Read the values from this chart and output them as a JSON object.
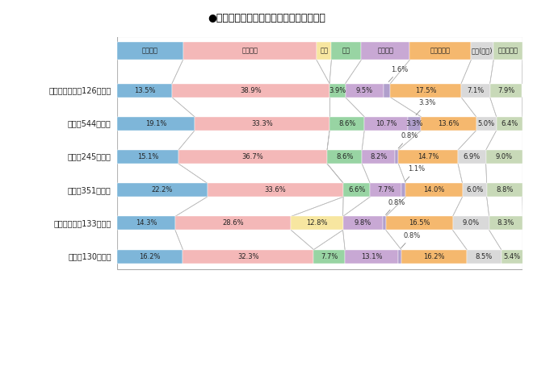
{
  "title": "●推薦入試実施学部の地区別・系統別比較",
  "categories": [
    "人文科学",
    "社会科学",
    "教育",
    "理工",
    "農・水産",
    "保健・医療",
    "生活(栄養)",
    "芸術・体育"
  ],
  "seg_colors": [
    "#7eb6d9",
    "#f4b8b8",
    "#f7e6a0",
    "#98d4a3",
    "#c8a8d4",
    "#b09fcc",
    "#f5b86e",
    "#d9d9d9",
    "#c8d9b8"
  ],
  "header_colors": [
    "#7eb6d9",
    "#f4b8b8",
    "#f7e6a0",
    "#98d4a3",
    "#c8a8d4",
    "#f5b86e",
    "#d9d9d9",
    "#c8d9b8"
  ],
  "row_labels": [
    "北海道・東北（126学部）",
    "関東（544学部）",
    "中部（245学部）",
    "近畟（351学部）",
    "中国・四国（133学部）",
    "九州（130学部）"
  ],
  "rows_9": [
    [
      13.5,
      38.9,
      0.0,
      3.9,
      9.5,
      1.6,
      17.5,
      7.1,
      7.9
    ],
    [
      19.1,
      33.3,
      0.0,
      8.6,
      10.7,
      3.3,
      13.6,
      5.0,
      6.4
    ],
    [
      15.1,
      36.7,
      0.0,
      8.6,
      8.2,
      0.8,
      14.7,
      6.9,
      9.0
    ],
    [
      22.2,
      33.6,
      0.0,
      6.6,
      7.7,
      1.1,
      14.0,
      6.0,
      8.8
    ],
    [
      14.3,
      28.6,
      12.8,
      0.0,
      9.8,
      0.8,
      16.5,
      9.0,
      8.3
    ],
    [
      16.2,
      32.3,
      0.0,
      7.7,
      13.1,
      0.8,
      16.2,
      8.5,
      5.4
    ]
  ],
  "row_bar_labels": [
    [
      "13.5%",
      "38.9%",
      null,
      "3.9%",
      "9.5%",
      null,
      "17.5%",
      "7.1%",
      "7.9%"
    ],
    [
      "19.1%",
      "33.3%",
      null,
      "8.6%",
      "10.7%",
      "3.3%",
      "13.6%",
      "5.0%",
      "6.4%"
    ],
    [
      "15.1%",
      "36.7%",
      null,
      "8.6%",
      "8.2%",
      null,
      "14.7%",
      "6.9%",
      "9.0%"
    ],
    [
      "22.2%",
      "33.6%",
      null,
      "6.6%",
      "7.7%",
      null,
      "14.0%",
      "6.0%",
      "8.8%"
    ],
    [
      "14.3%",
      "28.6%",
      "12.8%",
      null,
      "9.8%",
      null,
      "16.5%",
      "9.0%",
      "8.3%"
    ],
    [
      "16.2%",
      "32.3%",
      null,
      "7.7%",
      "13.1%",
      null,
      "16.2%",
      "8.5%",
      "5.4%"
    ]
  ],
  "small_annot": [
    "1.6%",
    "3.3%",
    "0.8%",
    "1.1%",
    "0.8%",
    "0.8%"
  ],
  "header_widths": [
    16.7,
    33.9,
    3.8,
    7.6,
    12.3,
    15.6,
    5.7,
    7.3
  ],
  "line_color": "#bbbbbb",
  "border_color": "#aaaaaa",
  "bg_color": "#ffffff",
  "title_fontsize": 9,
  "label_fontsize": 7,
  "bar_fontsize": 6,
  "annot_fontsize": 6
}
